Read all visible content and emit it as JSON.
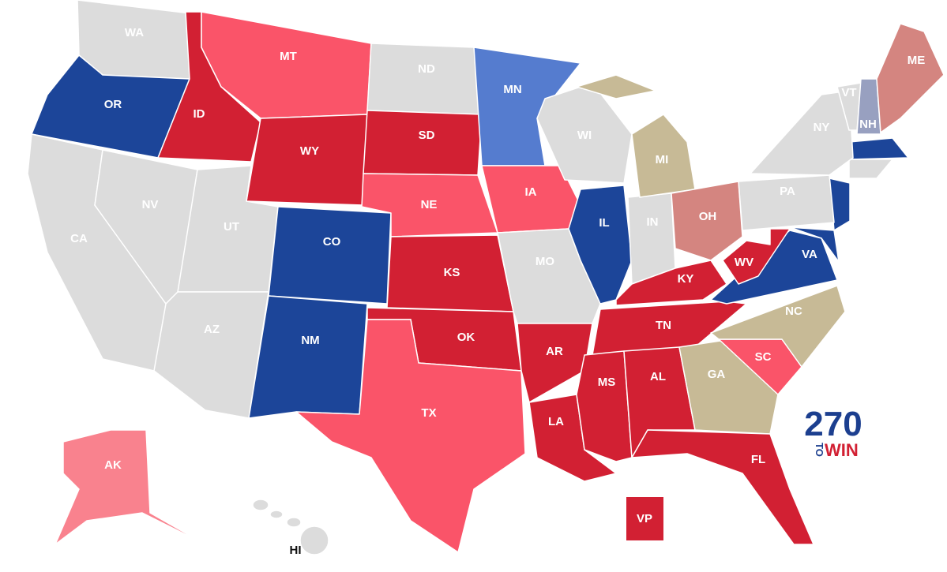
{
  "states": [
    {
      "label": "WA",
      "color": "#dcdcdc"
    },
    {
      "label": "OR",
      "color": "#1c4599"
    },
    {
      "label": "CA",
      "color": "#dcdcdc"
    },
    {
      "label": "NV",
      "color": "#dcdcdc"
    },
    {
      "label": "ID",
      "color": "#d22033"
    },
    {
      "label": "MT",
      "color": "#fa5469"
    },
    {
      "label": "WY",
      "color": "#d22033"
    },
    {
      "label": "UT",
      "color": "#dcdcdc"
    },
    {
      "label": "AZ",
      "color": "#dcdcdc"
    },
    {
      "label": "CO",
      "color": "#1c4599"
    },
    {
      "label": "NM",
      "color": "#1c4599"
    },
    {
      "label": "ND",
      "color": "#dcdcdc"
    },
    {
      "label": "SD",
      "color": "#d22033"
    },
    {
      "label": "NE",
      "color": "#fa5469"
    },
    {
      "label": "KS",
      "color": "#d22033"
    },
    {
      "label": "OK",
      "color": "#d22033"
    },
    {
      "label": "TX",
      "color": "#fa5469"
    },
    {
      "label": "MN",
      "color": "#557ccf"
    },
    {
      "label": "IA",
      "color": "#fa5469"
    },
    {
      "label": "MO",
      "color": "#dcdcdc"
    },
    {
      "label": "AR",
      "color": "#d22033"
    },
    {
      "label": "LA",
      "color": "#d22033"
    },
    {
      "label": "WI",
      "color": "#dcdcdc"
    },
    {
      "label": "IL",
      "color": "#1c4599"
    },
    {
      "label": "IN",
      "color": "#dcdcdc"
    },
    {
      "label": "MI",
      "color": "#c7ba96"
    },
    {
      "label": "OH",
      "color": "#d48580"
    },
    {
      "label": "KY",
      "color": "#d22033"
    },
    {
      "label": "TN",
      "color": "#d22033"
    },
    {
      "label": "MS",
      "color": "#d22033"
    },
    {
      "label": "AL",
      "color": "#d22033"
    },
    {
      "label": "GA",
      "color": "#c7ba96"
    },
    {
      "label": "FL",
      "color": "#d22033"
    },
    {
      "label": "SC",
      "color": "#fa5469"
    },
    {
      "label": "NC",
      "color": "#c7ba96"
    },
    {
      "label": "VA",
      "color": "#1c4599"
    },
    {
      "label": "WV",
      "color": "#d22033"
    },
    {
      "label": "PA",
      "color": "#dcdcdc"
    },
    {
      "label": "NY",
      "color": "#dcdcdc"
    },
    {
      "label": "VT",
      "color": "#dcdcdc"
    },
    {
      "label": "NH",
      "color": "#98a0c0"
    },
    {
      "label": "ME",
      "color": "#d48580"
    },
    {
      "label": "AK",
      "color": "#f9828e"
    },
    {
      "label": "HI",
      "color": "#dcdcdc"
    },
    {
      "label": "VP",
      "color": "#d22033"
    }
  ],
  "logo": {
    "number": "270",
    "to": "TO",
    "win": "WIN"
  }
}
